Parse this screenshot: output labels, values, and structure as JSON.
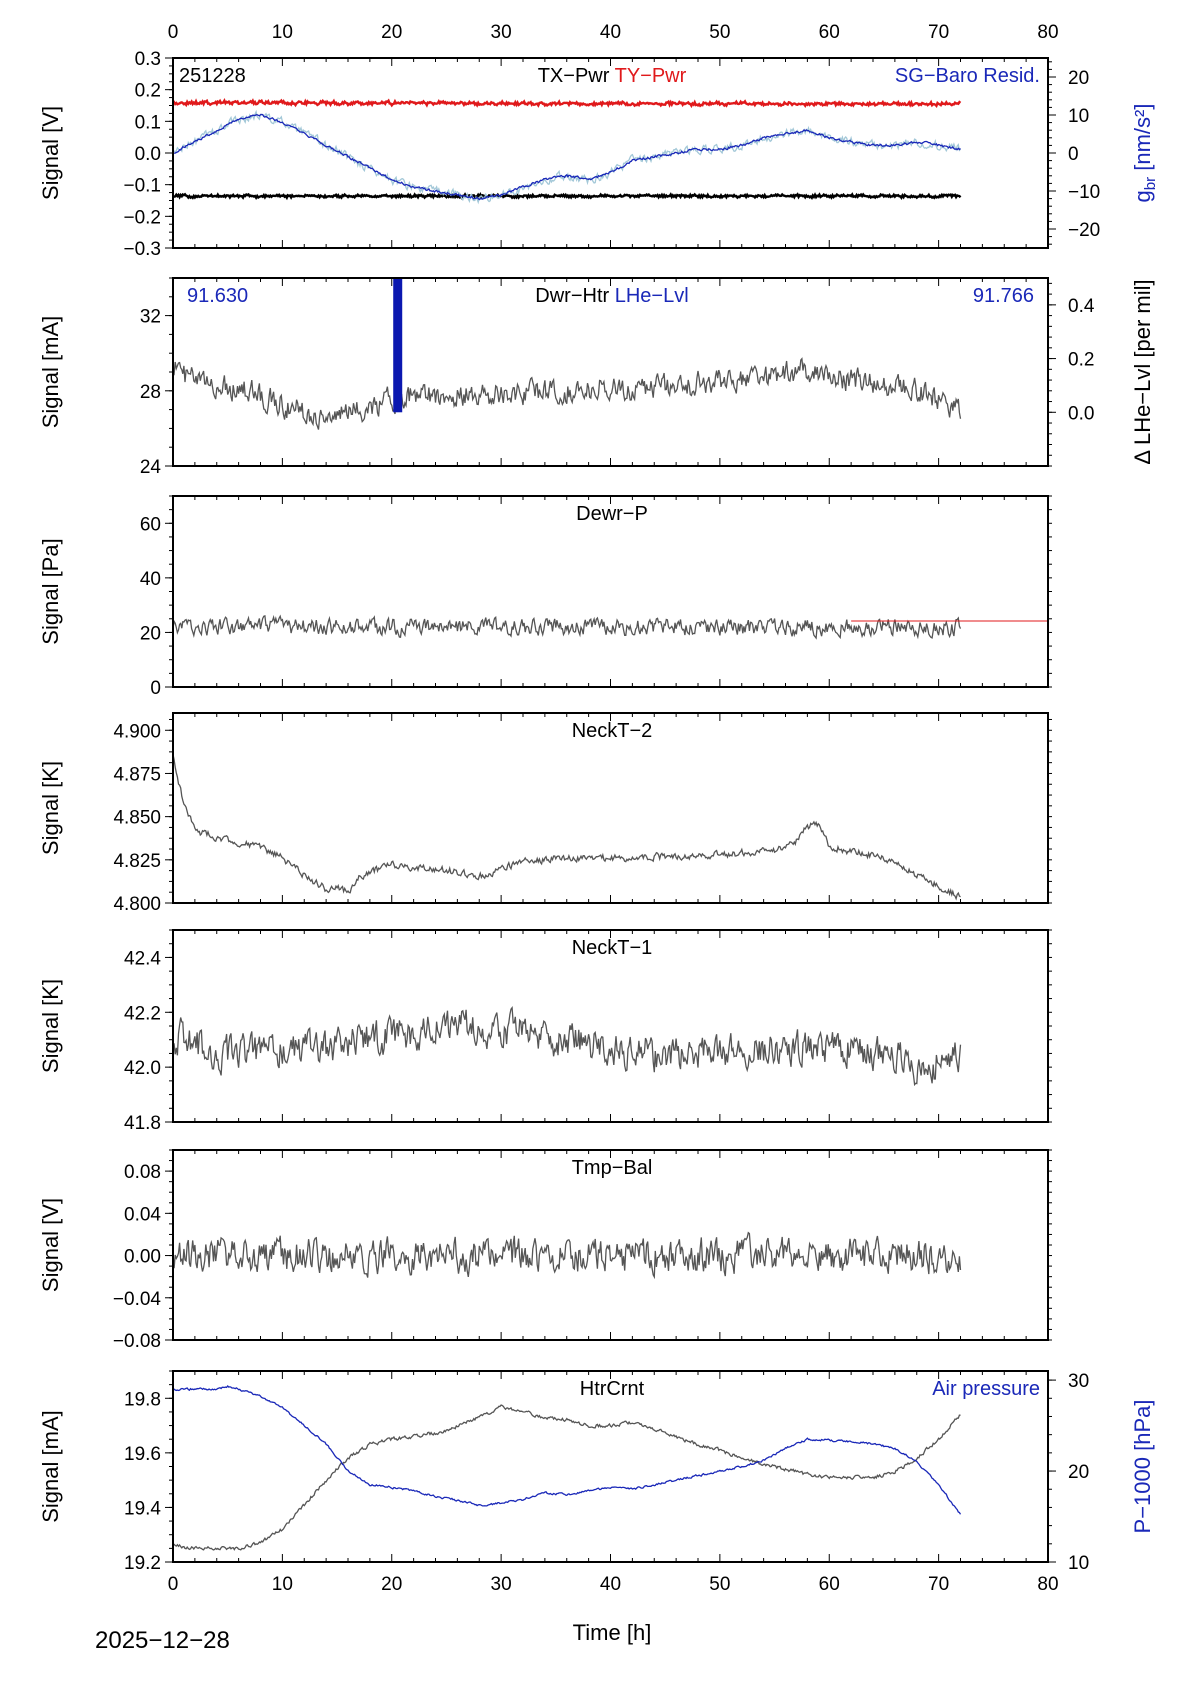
{
  "date_label": "2025−12−28",
  "x_axis": {
    "label": "Time [h]",
    "min": 0,
    "max": 80,
    "ticks": [
      "0",
      "10",
      "20",
      "30",
      "40",
      "50",
      "60",
      "70",
      "80"
    ]
  },
  "chart_data": [
    {
      "id": "tx-ty-pwr",
      "type": "line",
      "corner_label": "251228",
      "titles": [
        {
          "text": "TX−Pwr",
          "color": "#000000"
        },
        {
          "text": "TY−Pwr",
          "color": "#e0191b"
        }
      ],
      "right_title": {
        "text": "SG−Baro Resid.",
        "color": "#1a28b8"
      },
      "ylabel": "Signal [V]",
      "ylim": [
        -0.3,
        0.3
      ],
      "yticks": [
        -0.3,
        -0.2,
        -0.1,
        0.0,
        0.1,
        0.2,
        0.3
      ],
      "yticklabels": [
        "−0.3",
        "−0.2",
        "−0.1",
        "0.0",
        "0.1",
        "0.2",
        "0.3"
      ],
      "y2": {
        "label": "g_br [nm/s²]",
        "label_main": "g",
        "label_sub": "br",
        "label_rest": " [nm/s²]",
        "color": "#1a28b8",
        "ylim": [
          -25,
          25
        ],
        "ticks": [
          -20,
          -10,
          0,
          10,
          20
        ],
        "ticklabels": [
          "−20",
          "−10",
          "0",
          "10",
          "20"
        ]
      },
      "series": [
        {
          "color": "#e0191b",
          "axis": "y",
          "x": [
            0,
            72
          ],
          "y": [
            0.155,
            0.15
          ],
          "noise": 0.004,
          "band": 0.015
        },
        {
          "color": "#000000",
          "axis": "y",
          "x": [
            0,
            72
          ],
          "y": [
            -0.14,
            -0.14
          ],
          "noise": 0.003,
          "band": 0.015
        },
        {
          "color": "#a3c8d8",
          "axis": "y2",
          "x": [
            0,
            2,
            4,
            6,
            8,
            10,
            12,
            14,
            16,
            18,
            20,
            22,
            24,
            26,
            28,
            30,
            32,
            34,
            36,
            38,
            40,
            42,
            44,
            46,
            48,
            50,
            52,
            54,
            56,
            58,
            60,
            62,
            64,
            66,
            68,
            70,
            72
          ],
          "y": [
            0,
            3,
            6,
            9,
            10,
            8,
            5,
            2,
            -1,
            -4,
            -7,
            -9,
            -10,
            -11,
            -12,
            -11,
            -9,
            -7,
            -6,
            -7,
            -5,
            -2,
            -1,
            0,
            1,
            1,
            2,
            4,
            5,
            6,
            4,
            3,
            2,
            2,
            3,
            2,
            1
          ],
          "noise": 1.0
        },
        {
          "color": "#1a28b8",
          "axis": "y2",
          "x": [
            0,
            2,
            4,
            6,
            8,
            10,
            12,
            14,
            16,
            18,
            20,
            22,
            24,
            26,
            28,
            30,
            32,
            34,
            36,
            38,
            40,
            42,
            44,
            46,
            48,
            50,
            52,
            54,
            56,
            58,
            60,
            62,
            64,
            66,
            68,
            70,
            72
          ],
          "y": [
            0,
            3,
            6,
            9,
            10,
            8,
            5,
            2,
            -1,
            -4,
            -7,
            -9,
            -10,
            -11,
            -12,
            -11,
            -9,
            -7,
            -6,
            -7,
            -5,
            -2,
            -1,
            0,
            1,
            1,
            2,
            4,
            5,
            6,
            4,
            3,
            2,
            2,
            3,
            2,
            1
          ],
          "noise": 0.3
        }
      ]
    },
    {
      "id": "dwr-htr",
      "type": "line",
      "titles": [
        {
          "text": "Dwr−Htr",
          "color": "#000000"
        },
        {
          "text": "LHe−Lvl",
          "color": "#1a28b8"
        }
      ],
      "left_value": "91.630",
      "right_value": "91.766",
      "value_color": "#1a28b8",
      "ylabel": "Signal [mA]",
      "ylim": [
        24,
        34
      ],
      "yticks": [
        24,
        28,
        32
      ],
      "yticklabels": [
        "24",
        "28",
        "32"
      ],
      "y2": {
        "label": "Δ LHe−Lvl [per mil]",
        "color": "#000000",
        "ylim": [
          -0.2,
          0.5
        ],
        "ticks": [
          0.0,
          0.2,
          0.4
        ],
        "ticklabels": [
          "0.0",
          "0.2",
          "0.4"
        ]
      },
      "lhe_bar": {
        "x": 20.5,
        "y_from": 0.0,
        "y_to": 0.5,
        "color": "#0b18b0"
      },
      "series": [
        {
          "color": "#555555",
          "axis": "y",
          "x": [
            0,
            1,
            3,
            6,
            9,
            12,
            14,
            16,
            18,
            20,
            22,
            25,
            28,
            32,
            36,
            40,
            44,
            48,
            52,
            56,
            58,
            60,
            64,
            68,
            70,
            72
          ],
          "y": [
            29.5,
            28.8,
            28.3,
            28.2,
            27.5,
            26.9,
            26.6,
            26.8,
            27.2,
            27.5,
            27.8,
            27.8,
            27.8,
            27.9,
            28.0,
            28.2,
            28.2,
            28.4,
            28.6,
            28.9,
            29.2,
            28.7,
            28.4,
            28.0,
            27.6,
            27.0
          ],
          "noise": 0.55
        }
      ]
    },
    {
      "id": "dewr-p",
      "type": "line",
      "titles": [
        {
          "text": "Dewr−P",
          "color": "#000000"
        }
      ],
      "ylabel": "Signal [Pa]",
      "ylim": [
        0,
        70
      ],
      "yticks": [
        0,
        20,
        40,
        60
      ],
      "yticklabels": [
        "0",
        "20",
        "40",
        "60"
      ],
      "reference_line": {
        "x_from": 62,
        "x_to": 80,
        "y": 24.2,
        "color": "#e0191b"
      },
      "series": [
        {
          "color": "#555555",
          "axis": "y",
          "x": [
            0,
            72
          ],
          "y": [
            22,
            22
          ],
          "noise": 2.6
        }
      ]
    },
    {
      "id": "neckt-2",
      "type": "line",
      "titles": [
        {
          "text": "NeckT−2",
          "color": "#000000"
        }
      ],
      "ylabel": "Signal [K]",
      "ylim": [
        4.8,
        4.91
      ],
      "yticks": [
        4.8,
        4.825,
        4.85,
        4.875,
        4.9
      ],
      "yticklabels": [
        "4.800",
        "4.825",
        "4.850",
        "4.875",
        "4.900"
      ],
      "series": [
        {
          "color": "#555555",
          "axis": "y",
          "x": [
            0,
            0.5,
            1,
            2,
            4,
            6,
            8,
            10,
            12,
            13,
            14,
            15,
            16,
            17,
            18,
            20,
            22,
            25,
            28,
            30,
            32,
            35,
            40,
            45,
            50,
            55,
            57,
            58,
            59,
            60,
            62,
            65,
            68,
            70,
            72
          ],
          "y": [
            4.885,
            4.87,
            4.858,
            4.842,
            4.838,
            4.835,
            4.832,
            4.826,
            4.816,
            4.812,
            4.808,
            4.81,
            4.806,
            4.814,
            4.818,
            4.822,
            4.821,
            4.819,
            4.815,
            4.82,
            4.824,
            4.826,
            4.826,
            4.827,
            4.828,
            4.83,
            4.836,
            4.844,
            4.846,
            4.833,
            4.83,
            4.826,
            4.816,
            4.81,
            4.803
          ],
          "noise": 0.0018
        }
      ]
    },
    {
      "id": "neckt-1",
      "type": "line",
      "titles": [
        {
          "text": "NeckT−1",
          "color": "#000000"
        }
      ],
      "ylabel": "Signal [K]",
      "ylim": [
        41.8,
        42.5
      ],
      "yticks": [
        41.8,
        42.0,
        42.2,
        42.4
      ],
      "yticklabels": [
        "41.8",
        "42.0",
        "42.2",
        "42.4"
      ],
      "series": [
        {
          "color": "#555555",
          "axis": "y",
          "x": [
            0,
            3,
            6,
            10,
            14,
            18,
            22,
            26,
            30,
            34,
            38,
            42,
            46,
            50,
            54,
            58,
            62,
            66,
            68,
            70,
            72
          ],
          "y": [
            42.12,
            42.07,
            42.04,
            42.06,
            42.07,
            42.1,
            42.13,
            42.15,
            42.14,
            42.11,
            42.08,
            42.06,
            42.04,
            42.05,
            42.06,
            42.08,
            42.07,
            42.05,
            41.98,
            42.02,
            42.06
          ],
          "noise": 0.055
        }
      ]
    },
    {
      "id": "tmp-bal",
      "type": "line",
      "titles": [
        {
          "text": "Tmp−Bal",
          "color": "#000000"
        }
      ],
      "ylabel": "Signal [V]",
      "ylim": [
        -0.08,
        0.1
      ],
      "yticks": [
        -0.08,
        -0.04,
        0.0,
        0.04,
        0.08
      ],
      "yticklabels": [
        "−0.08",
        "−0.04",
        "0.00",
        "0.04",
        "0.08"
      ],
      "series": [
        {
          "color": "#555555",
          "axis": "y",
          "x": [
            0,
            72
          ],
          "y": [
            0,
            0
          ],
          "noise": 0.014
        }
      ]
    },
    {
      "id": "htrcrnt",
      "type": "line",
      "titles": [
        {
          "text": "HtrCrnt",
          "color": "#000000"
        }
      ],
      "right_title": {
        "text": "Air pressure",
        "color": "#1a28b8"
      },
      "ylabel": "Signal [mA]",
      "ylim": [
        19.2,
        19.9
      ],
      "yticks": [
        19.2,
        19.4,
        19.6,
        19.8
      ],
      "yticklabels": [
        "19.2",
        "19.4",
        "19.6",
        "19.8"
      ],
      "y2": {
        "label": "P−1000 [hPa]",
        "color": "#1a28b8",
        "ylim": [
          10,
          31
        ],
        "ticks": [
          10,
          20,
          30
        ],
        "ticklabels": [
          "10",
          "20",
          "30"
        ]
      },
      "series": [
        {
          "color": "#555555",
          "axis": "y",
          "x": [
            0,
            2,
            4,
            6,
            8,
            10,
            12,
            14,
            16,
            18,
            20,
            22,
            25,
            28,
            30,
            32,
            34,
            36,
            38,
            40,
            42,
            44,
            46,
            48,
            50,
            52,
            54,
            56,
            58,
            60,
            62,
            64,
            66,
            68,
            70,
            72
          ],
          "y": [
            19.26,
            19.25,
            19.25,
            19.25,
            19.27,
            19.32,
            19.41,
            19.5,
            19.58,
            19.63,
            19.65,
            19.66,
            19.68,
            19.73,
            19.77,
            19.75,
            19.73,
            19.72,
            19.7,
            19.7,
            19.71,
            19.69,
            19.66,
            19.63,
            19.61,
            19.58,
            19.56,
            19.54,
            19.52,
            19.51,
            19.51,
            19.51,
            19.53,
            19.58,
            19.65,
            19.74
          ],
          "noise": 0.006
        },
        {
          "color": "#1a28b8",
          "axis": "y2",
          "x": [
            0,
            2,
            4,
            5,
            6,
            8,
            10,
            12,
            14,
            16,
            18,
            20,
            22,
            24,
            26,
            28,
            30,
            32,
            34,
            36,
            38,
            40,
            42,
            44,
            46,
            48,
            50,
            52,
            54,
            56,
            58,
            60,
            62,
            64,
            66,
            68,
            70,
            72
          ],
          "y": [
            29,
            29,
            29,
            29.3,
            29,
            28.2,
            27,
            25,
            23,
            20,
            18.5,
            18.2,
            17.8,
            17.2,
            16.8,
            16.2,
            16.5,
            16.9,
            17.6,
            17.4,
            17.8,
            18.2,
            18.0,
            18.5,
            19.0,
            19.5,
            20,
            20.5,
            21.2,
            22.5,
            23.5,
            23.4,
            23.2,
            23,
            22.5,
            21,
            18.5,
            15.2
          ],
          "noise": 0.1
        }
      ]
    }
  ]
}
